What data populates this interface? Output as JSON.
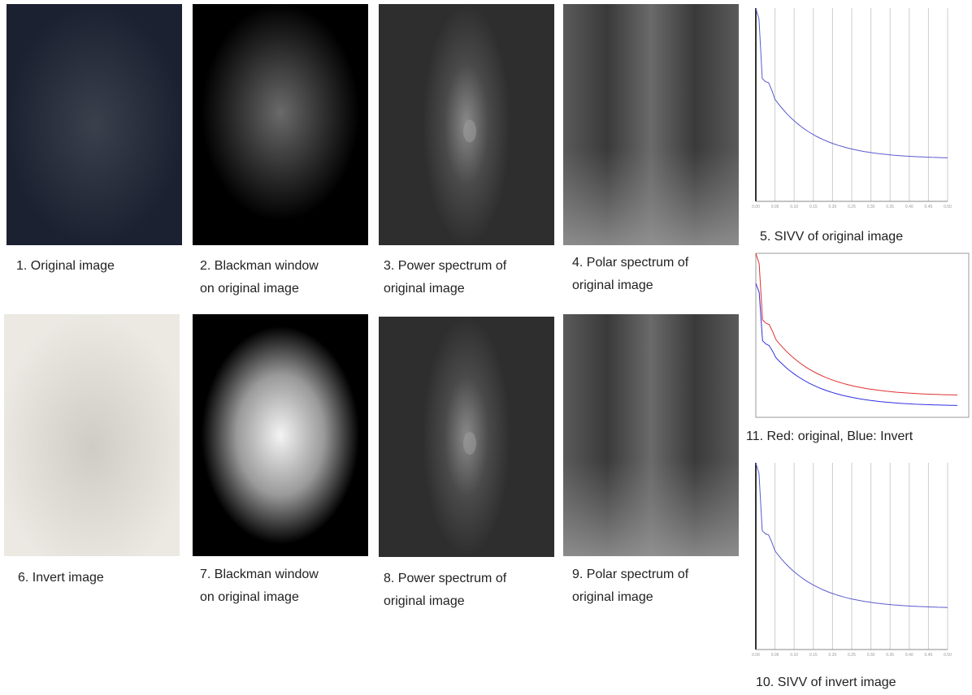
{
  "panels": [
    {
      "caption": [
        "1. Original image"
      ]
    },
    {
      "caption": [
        "2. Blackman window",
        "on original image"
      ]
    },
    {
      "caption": [
        "3. Power spectrum of",
        "original image"
      ]
    },
    {
      "caption": [
        "4. Polar spectrum of",
        "original image"
      ]
    },
    {
      "caption": [
        "5. SIVV of original image"
      ],
      "x_ticks": [
        "0.00",
        "0.05",
        "0.10",
        "0.15",
        "0.20",
        "0.25",
        "0.30",
        "0.35",
        "0.40",
        "0.45",
        "0.50"
      ]
    },
    {
      "caption": [
        "6. Invert image"
      ]
    },
    {
      "caption": [
        "7. Blackman window",
        "on original image"
      ]
    },
    {
      "caption": [
        "8. Power spectrum of",
        "original image"
      ]
    },
    {
      "caption": [
        "9. Polar spectrum of",
        "original image"
      ]
    },
    {
      "caption": [
        "10. SIVV of invert image"
      ],
      "x_ticks": [
        "0.00",
        "0.05",
        "0.10",
        "0.15",
        "0.20",
        "0.25",
        "0.30",
        "0.35",
        "0.40",
        "0.45",
        "0.50"
      ]
    },
    {
      "caption": [
        "11. Red: original, Blue: Invert"
      ]
    }
  ]
}
